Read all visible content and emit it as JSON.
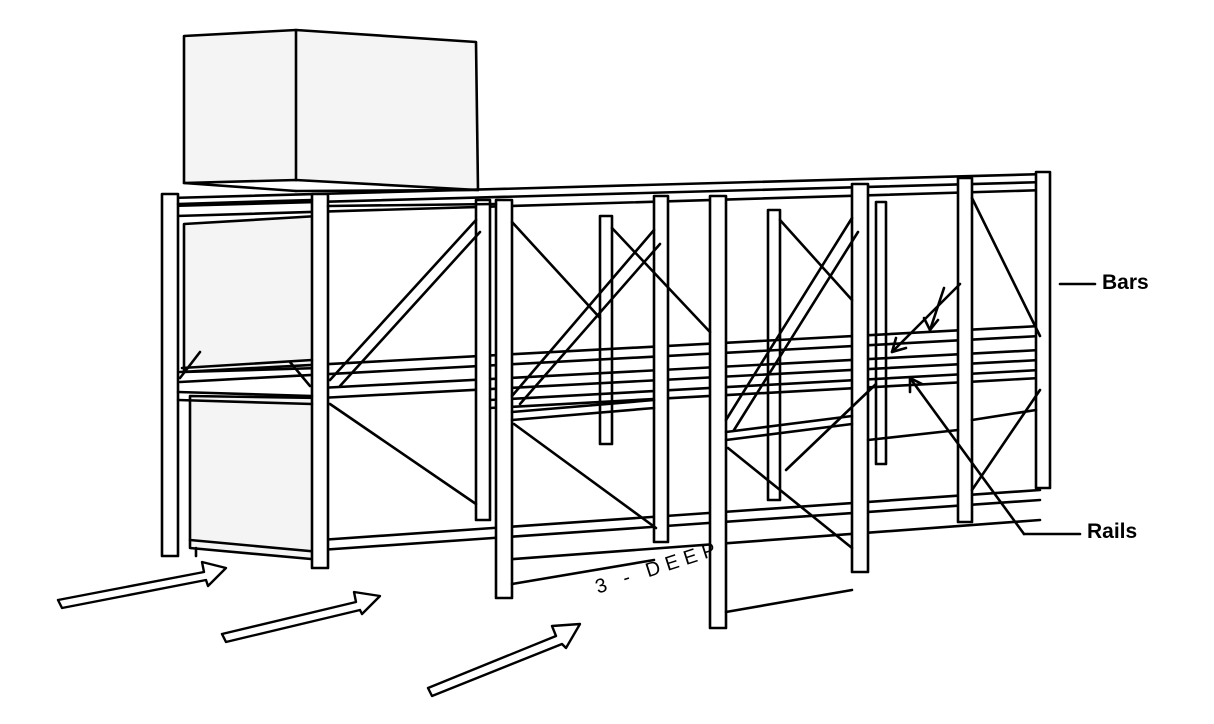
{
  "labels": {
    "bars": "Bars",
    "rails": "Rails",
    "depth": "3 - DEEP"
  },
  "colors": {
    "ink": "#000000",
    "paper": "#ffffff",
    "box_fill": "#f4f4f4"
  },
  "icons": [
    "arrow-icon"
  ]
}
